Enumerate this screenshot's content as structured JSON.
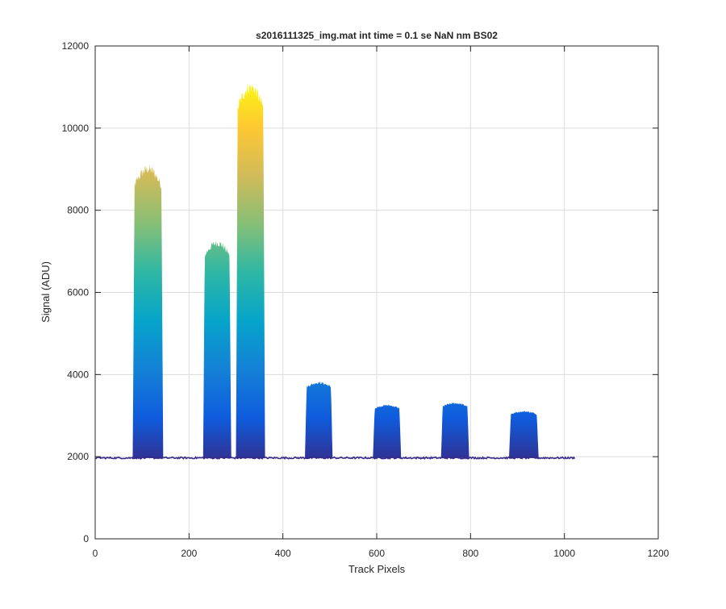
{
  "chart_data": {
    "type": "area",
    "title": "s2016111325_img.mat int time = 0.1 se  NaN nm BS02",
    "xlabel": "Track Pixels",
    "ylabel": "Signal (ADU)",
    "xlim": [
      0,
      1200
    ],
    "ylim": [
      0,
      12000
    ],
    "xticks": [
      0,
      200,
      400,
      600,
      800,
      1000,
      1200
    ],
    "yticks": [
      0,
      2000,
      4000,
      6000,
      8000,
      10000,
      12000
    ],
    "grid": true,
    "baseline": 1970,
    "x_extent": [
      0,
      1023
    ],
    "colormap": [
      "#352a87",
      "#0f5cdd",
      "#1481d6",
      "#06a4ca",
      "#2eb7a4",
      "#87bf77",
      "#d1bb59",
      "#fec832",
      "#f9fb0e"
    ],
    "peaks": [
      {
        "start": 80,
        "end": 145,
        "top": 9000,
        "inner": 4000
      },
      {
        "start": 230,
        "end": 290,
        "top": 7200,
        "inner": 3900
      },
      {
        "start": 300,
        "end": 362,
        "top": 11000,
        "inner": 6000
      },
      {
        "start": 447,
        "end": 506,
        "top": 3800,
        "inner": 2900
      },
      {
        "start": 592,
        "end": 652,
        "top": 3250,
        "inner": 2700
      },
      {
        "start": 737,
        "end": 797,
        "top": 3300,
        "inner": 2700
      },
      {
        "start": 882,
        "end": 945,
        "top": 3100,
        "inner": 2600
      }
    ]
  }
}
